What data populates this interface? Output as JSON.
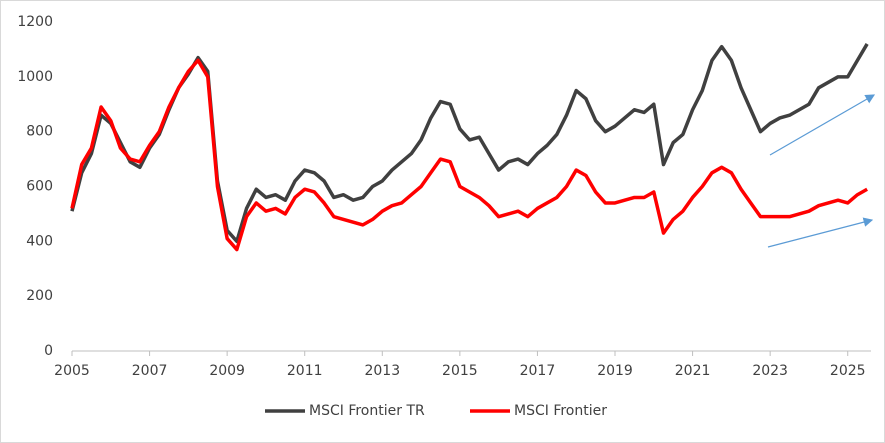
{
  "chart_data": {
    "type": "line",
    "x": [
      2005,
      2005.25,
      2005.5,
      2005.75,
      2006,
      2006.25,
      2006.5,
      2006.75,
      2007,
      2007.25,
      2007.5,
      2007.75,
      2008,
      2008.25,
      2008.5,
      2008.75,
      2009,
      2009.25,
      2009.5,
      2009.75,
      2010,
      2010.25,
      2010.5,
      2010.75,
      2011,
      2011.25,
      2011.5,
      2011.75,
      2012,
      2012.25,
      2012.5,
      2012.75,
      2013,
      2013.25,
      2013.5,
      2013.75,
      2014,
      2014.25,
      2014.5,
      2014.75,
      2015,
      2015.25,
      2015.5,
      2015.75,
      2016,
      2016.25,
      2016.5,
      2016.75,
      2017,
      2017.25,
      2017.5,
      2017.75,
      2018,
      2018.25,
      2018.5,
      2018.75,
      2019,
      2019.25,
      2019.5,
      2019.75,
      2020,
      2020.25,
      2020.5,
      2020.75,
      2021,
      2021.25,
      2021.5,
      2021.75,
      2022,
      2022.25,
      2022.5,
      2022.75,
      2023,
      2023.25,
      2023.5,
      2023.75,
      2024,
      2024.25,
      2024.5,
      2024.75,
      2025,
      2025.25,
      2025.5
    ],
    "series": [
      {
        "name": "MSCI Frontier TR",
        "color": "#404040",
        "values": [
          510,
          650,
          720,
          860,
          830,
          760,
          690,
          670,
          740,
          790,
          880,
          960,
          1010,
          1070,
          1020,
          620,
          440,
          400,
          520,
          590,
          560,
          570,
          550,
          620,
          660,
          650,
          620,
          560,
          570,
          550,
          560,
          600,
          620,
          660,
          690,
          720,
          770,
          850,
          910,
          900,
          810,
          770,
          780,
          720,
          660,
          690,
          700,
          680,
          720,
          750,
          790,
          860,
          950,
          920,
          840,
          800,
          820,
          850,
          880,
          870,
          900,
          680,
          760,
          790,
          880,
          950,
          1060,
          1110,
          1060,
          960,
          880,
          800,
          830,
          850,
          860,
          880,
          900,
          960,
          980,
          1000,
          1000,
          1060,
          1120
        ]
      },
      {
        "name": "MSCI Frontier",
        "color": "#ff0000",
        "values": [
          520,
          680,
          740,
          890,
          840,
          740,
          700,
          690,
          750,
          800,
          890,
          960,
          1020,
          1060,
          1000,
          600,
          410,
          370,
          490,
          540,
          510,
          520,
          500,
          560,
          590,
          580,
          540,
          490,
          480,
          470,
          460,
          480,
          510,
          530,
          540,
          570,
          600,
          650,
          700,
          690,
          600,
          580,
          560,
          530,
          490,
          500,
          510,
          490,
          520,
          540,
          560,
          600,
          660,
          640,
          580,
          540,
          540,
          550,
          560,
          560,
          580,
          430,
          480,
          510,
          560,
          600,
          650,
          670,
          650,
          590,
          540,
          490,
          490,
          490,
          490,
          500,
          510,
          530,
          540,
          550,
          540,
          570,
          590
        ]
      }
    ],
    "xlim": [
      2005,
      2025.6
    ],
    "xticks": [
      2005,
      2007,
      2009,
      2011,
      2013,
      2015,
      2017,
      2019,
      2021,
      2023,
      2025
    ],
    "ylim": [
      0,
      1200
    ],
    "yticks": [
      0,
      200,
      400,
      600,
      800,
      1000,
      1200
    ],
    "legend": "bottom"
  }
}
